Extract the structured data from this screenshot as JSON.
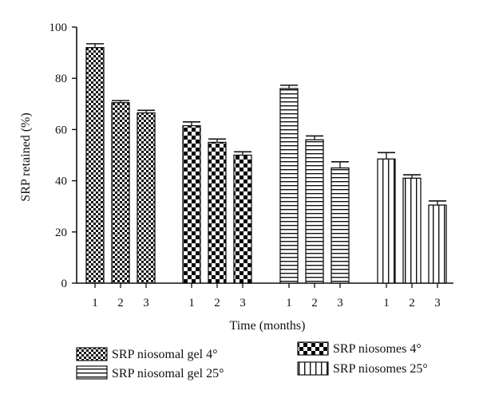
{
  "chart_data": {
    "type": "bar",
    "ylabel": "SRP retained (%)",
    "xlabel": "Time (months)",
    "ylim": [
      0,
      100
    ],
    "yticks": [
      0,
      20,
      40,
      60,
      80,
      100
    ],
    "categories": [
      "1",
      "2",
      "3"
    ],
    "series": [
      {
        "name": "SRP niosomal gel 4°",
        "pattern": "checker-fine",
        "values": [
          92,
          70.5,
          66.5
        ],
        "errors": [
          1.5,
          0.8,
          1.0
        ]
      },
      {
        "name": "SRP niosomes 4°",
        "pattern": "checker-coarse",
        "values": [
          61.5,
          55,
          50
        ],
        "errors": [
          1.5,
          1.3,
          1.3
        ]
      },
      {
        "name": "SRP niosomal gel 25°",
        "pattern": "horizontal-lines",
        "values": [
          76,
          56,
          45
        ],
        "errors": [
          1.3,
          1.5,
          2.4
        ]
      },
      {
        "name": "SRP niosomes 25°",
        "pattern": "vertical-lines",
        "values": [
          48.5,
          41,
          30.5
        ],
        "errors": [
          2.5,
          1.3,
          1.6
        ]
      }
    ],
    "legend_order": [
      0,
      2,
      1,
      3
    ],
    "grid": false,
    "legend_position": "bottom"
  }
}
